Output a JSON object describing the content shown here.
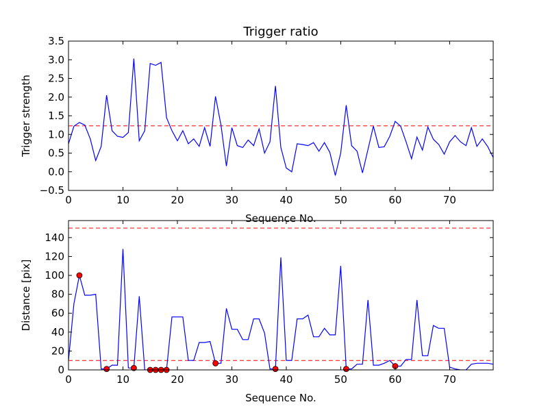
{
  "chart_data": [
    {
      "type": "line",
      "title": "Trigger ratio",
      "xlabel": "Sequence No.",
      "ylabel": "Trigger strength",
      "xlim": [
        0,
        78
      ],
      "ylim": [
        -0.5,
        3.5
      ],
      "xticks": [
        0,
        10,
        20,
        30,
        40,
        50,
        60,
        70
      ],
      "xtick_labels": [
        "0",
        "10",
        "20",
        "30",
        "40",
        "50",
        "60",
        "70"
      ],
      "yticks": [
        -0.5,
        0.0,
        0.5,
        1.0,
        1.5,
        2.0,
        2.5,
        3.0,
        3.5
      ],
      "ytick_labels": [
        "−0.5",
        "0.0",
        "0.5",
        "1.0",
        "1.5",
        "2.0",
        "2.5",
        "3.0",
        "3.5"
      ],
      "grid": false,
      "series": [
        {
          "color": "#0000ff",
          "x": [
            0,
            1,
            2,
            3,
            4,
            5,
            6,
            7,
            8,
            9,
            10,
            11,
            12,
            13,
            14,
            15,
            16,
            17,
            18,
            19,
            20,
            21,
            22,
            23,
            24,
            25,
            26,
            27,
            28,
            29,
            30,
            31,
            32,
            33,
            34,
            35,
            36,
            37,
            38,
            39,
            40,
            41,
            42,
            43,
            44,
            45,
            46,
            47,
            48,
            49,
            50,
            51,
            52,
            53,
            54,
            55,
            56,
            57,
            58,
            59,
            60,
            61,
            62,
            63,
            64,
            65,
            66,
            67,
            68,
            69,
            70,
            71,
            72,
            73,
            74,
            75,
            76,
            77,
            78
          ],
          "values": [
            0.75,
            1.22,
            1.32,
            1.25,
            0.88,
            0.3,
            0.68,
            2.05,
            1.1,
            0.95,
            0.92,
            1.05,
            3.03,
            0.83,
            1.1,
            2.9,
            2.85,
            2.93,
            1.45,
            1.1,
            0.83,
            1.1,
            0.75,
            0.88,
            0.68,
            1.18,
            0.68,
            2.02,
            1.25,
            0.15,
            1.18,
            0.7,
            0.65,
            0.85,
            0.7,
            1.15,
            0.5,
            0.8,
            2.3,
            0.65,
            0.1,
            0.0,
            0.75,
            0.73,
            0.7,
            0.78,
            0.55,
            0.78,
            0.52,
            -0.1,
            0.5,
            1.78,
            0.7,
            0.55,
            -0.03,
            0.6,
            1.22,
            0.65,
            0.67,
            0.95,
            1.35,
            1.22,
            0.8,
            0.35,
            0.93,
            0.58,
            1.2,
            0.87,
            0.73,
            0.47,
            0.8,
            0.97,
            0.8,
            0.7,
            1.18,
            0.68,
            0.88,
            0.67,
            0.38
          ]
        }
      ],
      "threshold": {
        "y": 1.23,
        "color": "#ff0000",
        "style": "dashed"
      }
    },
    {
      "type": "line",
      "title": "",
      "xlabel": "Sequence No.",
      "ylabel": "Distance [pix]",
      "xlim": [
        0,
        78
      ],
      "ylim": [
        0,
        158
      ],
      "xticks": [
        0,
        10,
        20,
        30,
        40,
        50,
        60,
        70
      ],
      "xtick_labels": [
        "0",
        "10",
        "20",
        "30",
        "40",
        "50",
        "60",
        "70"
      ],
      "yticks": [
        0,
        20,
        40,
        60,
        80,
        100,
        120,
        140
      ],
      "ytick_labels": [
        "0",
        "20",
        "40",
        "60",
        "80",
        "100",
        "120",
        "140"
      ],
      "grid": false,
      "series": [
        {
          "color": "#0000ff",
          "x": [
            0,
            1,
            2,
            3,
            4,
            5,
            6,
            7,
            8,
            9,
            10,
            11,
            12,
            13,
            14,
            15,
            16,
            17,
            18,
            19,
            20,
            21,
            22,
            23,
            24,
            25,
            26,
            27,
            28,
            29,
            30,
            31,
            32,
            33,
            34,
            35,
            36,
            37,
            38,
            39,
            40,
            41,
            42,
            43,
            44,
            45,
            46,
            47,
            48,
            49,
            50,
            51,
            52,
            53,
            54,
            55,
            56,
            57,
            58,
            59,
            60,
            61,
            62,
            63,
            64,
            65,
            66,
            67,
            68,
            69,
            70,
            71,
            72,
            73,
            74,
            75,
            76,
            77,
            78
          ],
          "values": [
            10,
            70,
            100,
            79,
            79,
            80,
            1,
            1,
            5,
            5,
            128,
            2,
            2,
            78,
            0,
            0,
            0,
            0,
            0,
            56,
            56,
            56,
            10,
            10,
            29,
            29,
            30,
            7,
            7,
            65,
            43,
            43,
            32,
            32,
            54,
            54,
            39,
            1,
            1,
            119,
            10,
            10,
            54,
            54,
            58,
            35,
            35,
            44,
            37,
            37,
            110,
            1,
            1,
            6,
            6,
            74,
            5,
            5,
            7,
            10,
            4,
            4,
            11,
            11,
            74,
            15,
            15,
            47,
            44,
            44,
            3,
            1,
            0,
            0,
            6,
            7,
            7,
            7,
            6
          ]
        }
      ],
      "markers": {
        "color": "#ff0000",
        "x": [
          2,
          7,
          12,
          15,
          16,
          17,
          18,
          27,
          38,
          51,
          60
        ],
        "values": [
          100,
          1,
          2,
          0,
          0,
          0,
          0,
          7,
          1,
          1,
          4
        ]
      },
      "thresholds": [
        {
          "y": 150,
          "color": "#ff0000",
          "style": "dashed"
        },
        {
          "y": 10,
          "color": "#ff0000",
          "style": "dashed"
        }
      ]
    }
  ]
}
